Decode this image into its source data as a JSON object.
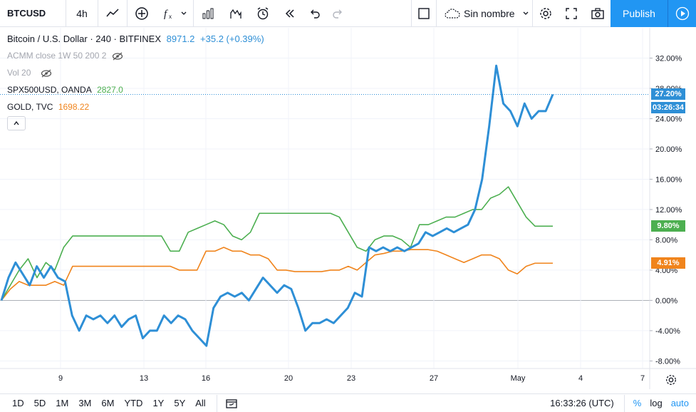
{
  "toolbar": {
    "symbol": "BTCUSD",
    "interval": "4h",
    "layout_name": "Sin nombre",
    "publish_label": "Publish"
  },
  "legend": {
    "main_title": "Bitcoin / U.S. Dollar · 240 · BITFINEX",
    "main_price": "8971.2",
    "main_change": "+35.2 (+0.39%)",
    "indicator1": "ACMM close 1W 50 200 2",
    "indicator2": "Vol 20",
    "compare1_name": "SPX500USD, OANDA",
    "compare1_value": "2827.0",
    "compare2_name": "GOLD, TVC",
    "compare2_value": "1698.22"
  },
  "colors": {
    "btc": "#2e8fd6",
    "spx": "#4caf50",
    "gold": "#f0841c"
  },
  "price_labels": {
    "btc_pct": "27.20%",
    "btc_countdown": "03:26:34",
    "spx_pct": "9.80%",
    "gold_pct": "4.91%"
  },
  "chart_data": {
    "type": "line",
    "ylim": [
      -9,
      36
    ],
    "y_ticks": [
      "32.00%",
      "28.00%",
      "24.00%",
      "20.00%",
      "16.00%",
      "12.00%",
      "8.00%",
      "4.00%",
      "0.00%",
      "-4.00%",
      "-8.00%"
    ],
    "x_ticks": [
      "9",
      "13",
      "16",
      "20",
      "23",
      "27",
      "May",
      "4",
      "7"
    ],
    "series": [
      {
        "key": "btc",
        "values": [
          0,
          3,
          5,
          3.5,
          2,
          4.5,
          3,
          4.5,
          3,
          2.5,
          -2,
          -4,
          -2,
          -2.5,
          -2,
          -3,
          -2,
          -3.5,
          -2.5,
          -2,
          -5,
          -4,
          -4,
          -2,
          -3,
          -2,
          -2.5,
          -4,
          -5,
          -6,
          -1,
          0.5,
          1,
          0.5,
          1,
          0,
          1.5,
          3,
          2,
          1,
          2,
          1.5,
          -1,
          -4,
          -3,
          -3,
          -2.5,
          -3,
          -2,
          -1,
          1,
          0.5,
          7,
          6.5,
          7,
          6.5,
          7,
          6.5,
          7,
          7.5,
          9,
          8.5,
          9,
          9.5,
          9,
          9.5,
          10,
          12,
          16,
          23,
          31,
          26,
          25,
          23,
          26,
          24,
          25,
          25,
          27.2
        ]
      },
      {
        "key": "spx",
        "values": [
          0,
          2,
          4,
          5.5,
          3,
          5,
          4,
          7,
          8.5,
          8.5,
          8.5,
          8.5,
          8.5,
          8.5,
          8.5,
          8.5,
          8.5,
          8.5,
          8.5,
          6.5,
          6.5,
          9,
          9.5,
          10,
          10.5,
          10,
          8.5,
          8,
          9,
          11.5,
          11.5,
          11.5,
          11.5,
          11.5,
          11.5,
          11.5,
          11.5,
          11.5,
          11,
          9,
          7,
          6.5,
          8,
          8.5,
          8.5,
          8,
          7,
          10,
          10,
          10.5,
          11,
          11,
          11.5,
          12,
          12,
          13.5,
          14,
          15,
          13,
          11,
          9.8,
          9.8,
          9.8
        ]
      },
      {
        "key": "gold",
        "values": [
          0,
          1.5,
          2.5,
          2,
          2,
          2,
          2.5,
          2,
          4.5,
          4.5,
          4.5,
          4.5,
          4.5,
          4.5,
          4.5,
          4.5,
          4.5,
          4.5,
          4.5,
          4.5,
          4,
          4,
          4,
          6.5,
          6.5,
          7,
          6.5,
          6.5,
          6,
          6,
          5.5,
          4,
          4,
          3.8,
          3.8,
          3.8,
          3.8,
          4,
          4,
          4.5,
          4,
          5,
          6,
          6.2,
          6.5,
          6.5,
          6.7,
          6.7,
          6.7,
          6.5,
          6,
          5.5,
          5,
          5.5,
          6,
          6,
          5.5,
          4,
          3.5,
          4.5,
          4.91,
          4.91,
          4.91
        ]
      }
    ]
  },
  "bottom": {
    "ranges": [
      "1D",
      "5D",
      "1M",
      "3M",
      "6M",
      "YTD",
      "1Y",
      "5Y",
      "All"
    ],
    "time": "16:33:26 (UTC)",
    "pct_label": "%",
    "log_label": "log",
    "auto_label": "auto"
  }
}
